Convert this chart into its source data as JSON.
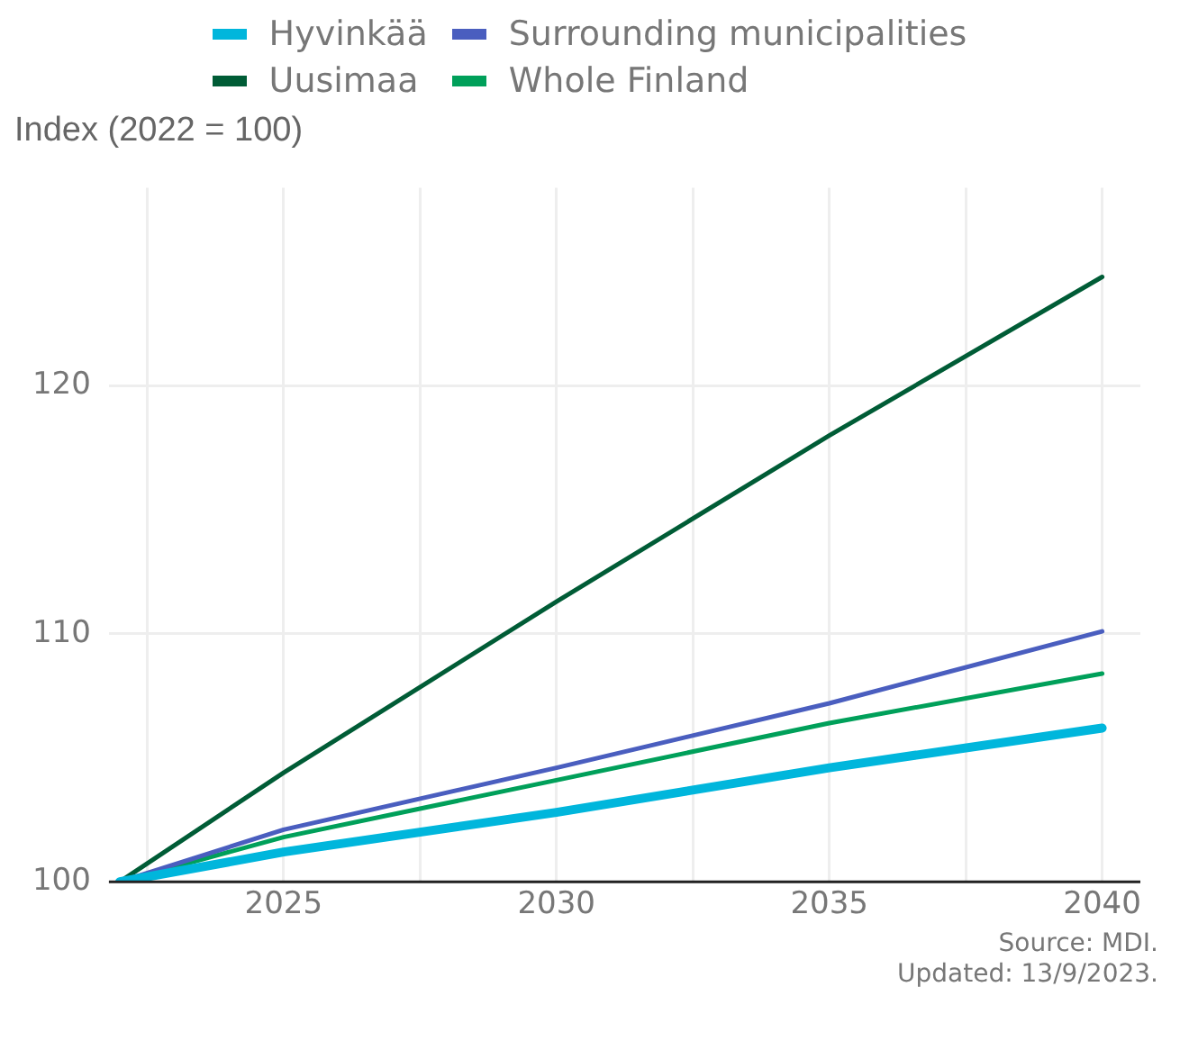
{
  "chart_data": {
    "type": "line",
    "ylabel": "Index (2022 = 100)",
    "legend": "top",
    "grid": true,
    "x": [
      2022,
      2025,
      2030,
      2035,
      2040
    ],
    "xlim": [
      2021.8,
      2040.7
    ],
    "xticks": [
      {
        "value": 2022.5,
        "label": null
      },
      2025,
      {
        "value": 2027.5,
        "label": null
      },
      2030,
      {
        "value": 2032.5,
        "label": null
      },
      2035,
      {
        "value": 2037.5,
        "label": null
      },
      2040
    ],
    "ylim": [
      100,
      128
    ],
    "yticks": [
      100,
      110,
      120
    ],
    "series": [
      {
        "name": "Hyvinkää",
        "color": "#00b6dc",
        "values": [
          100,
          101.2,
          102.8,
          104.6,
          106.2
        ]
      },
      {
        "name": "Surrounding municipalities",
        "color": "#4a5ebf",
        "values": [
          100,
          102.1,
          104.6,
          107.2,
          110.1
        ]
      },
      {
        "name": "Uusimaa",
        "color": "#005c36",
        "values": [
          100,
          104.4,
          111.3,
          118.0,
          124.4
        ]
      },
      {
        "name": "Whole Finland",
        "color": "#00a05a",
        "values": [
          100,
          101.8,
          104.1,
          106.4,
          108.4
        ]
      }
    ],
    "annotations": [
      "Source: MDI.",
      "Updated: 13/9/2023."
    ]
  }
}
